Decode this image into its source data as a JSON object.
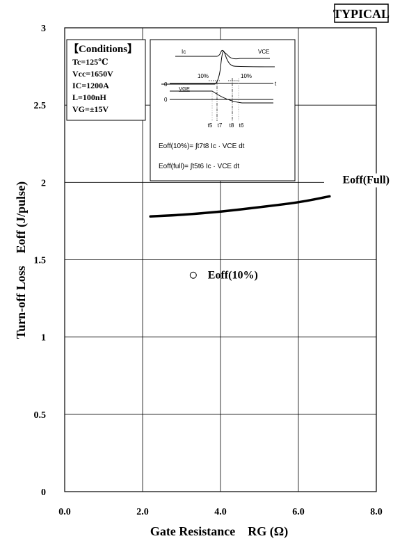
{
  "badge": "TYPICAL",
  "conditions": {
    "heading": "【Conditions】",
    "lines": [
      "Tc=125℃",
      "Vcc=1650V",
      "IC=1200A",
      "L=100nH",
      "VG=±15V"
    ]
  },
  "inset": {
    "ic_label": "Ic",
    "vce_label": "VCE",
    "vge_label": "VGE",
    "pct_left": "10%",
    "pct_right": "10%",
    "zero_top": "0",
    "zero_bottom": "0",
    "t_label": "t",
    "t5": "t5",
    "t7": "t7",
    "t8": "t8",
    "t6": "t6",
    "formula1": "Eoff(10%)= ∫t7t8 Ic · VCE dt",
    "formula2": "Eoff(full)= ∫t5t6 Ic · VCE dt"
  },
  "chart_data": {
    "type": "line",
    "xlabel": "Gate Resistance    RG (Ω)",
    "ylabel": "Turn-off Loss    Eoff (J/pulse)",
    "xlim": [
      0,
      8
    ],
    "ylim": [
      0,
      3
    ],
    "x_ticks": [
      "0.0",
      "2.0",
      "4.0",
      "6.0",
      "8.0"
    ],
    "y_ticks": [
      "0",
      "0.5",
      "1",
      "1.5",
      "2",
      "2.5",
      "3"
    ],
    "grid": true,
    "series": [
      {
        "name": "Eoff(Full)",
        "style": "solid-thick",
        "x": [
          2.2,
          3.0,
          4.0,
          5.0,
          6.0,
          6.8
        ],
        "y": [
          1.78,
          1.79,
          1.81,
          1.84,
          1.87,
          1.91
        ]
      },
      {
        "name": "Eoff(10%)",
        "style": "open-circle-marker",
        "x": [
          3.3
        ],
        "y": [
          1.4
        ]
      }
    ],
    "legend": "inline-labels"
  }
}
